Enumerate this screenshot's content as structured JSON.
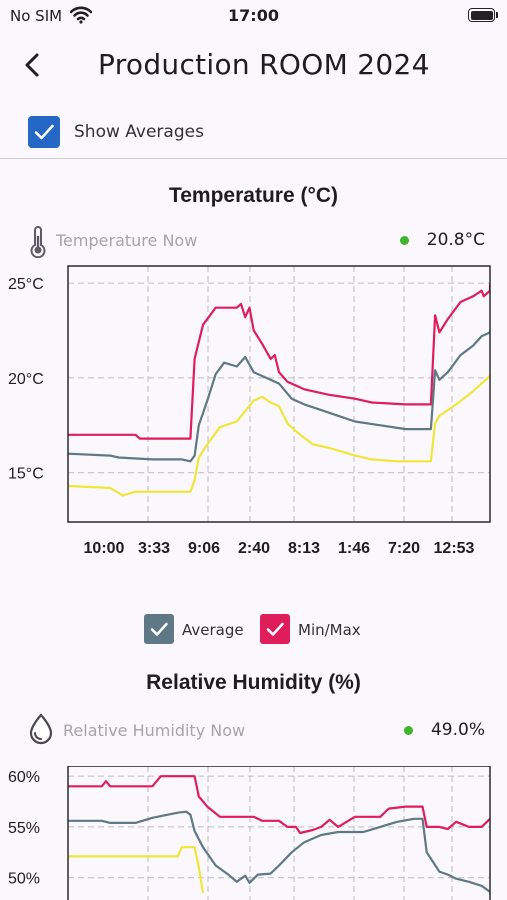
{
  "status_bar": {
    "carrier": "No SIM",
    "time": "17:00"
  },
  "header": {
    "title": "Production ROOM 2024",
    "back_icon": "chevron-left-icon"
  },
  "averages_toggle": {
    "label": "Show Averages",
    "checked": true,
    "color": "#2467c4"
  },
  "temperature": {
    "title": "Temperature (°C)",
    "now_label": "Temperature Now",
    "now_value": "20.8°C",
    "icon": "thermometer-icon",
    "status_color": "#3fb52c"
  },
  "humidity": {
    "title": "Relative Humidity (%)",
    "now_label": "Relative Humidity Now",
    "now_value": "49.0%",
    "icon": "droplet-icon",
    "status_color": "#3fb52c"
  },
  "legend": {
    "average_label": "Average",
    "average_color": "#5f7885",
    "minmax_label": "Min/Max",
    "minmax_color": "#de1d5a",
    "min_color": "#f2e53a"
  },
  "chart_data": [
    {
      "type": "line",
      "title": "Temperature (°C)",
      "ylim": [
        12.4,
        25.9
      ],
      "yticks": [
        15,
        20,
        25
      ],
      "ytick_labels": [
        "15°C",
        "20°C",
        "25°C"
      ],
      "xtick_labels": [
        "10:00",
        "3:33",
        "9:06",
        "2:40",
        "8:13",
        "1:46",
        "7:20",
        "12:53"
      ],
      "grid": true,
      "series": [
        {
          "name": "Max",
          "color": "#de1d5a",
          "points": [
            [
              0,
              17.0
            ],
            [
              0.16,
              17.0
            ],
            [
              0.17,
              16.8
            ],
            [
              0.29,
              16.8
            ],
            [
              0.3,
              21.0
            ],
            [
              0.32,
              22.8
            ],
            [
              0.35,
              23.7
            ],
            [
              0.4,
              23.7
            ],
            [
              0.41,
              23.9
            ],
            [
              0.42,
              23.2
            ],
            [
              0.43,
              23.7
            ],
            [
              0.44,
              22.5
            ],
            [
              0.46,
              21.8
            ],
            [
              0.48,
              21.0
            ],
            [
              0.49,
              21.2
            ],
            [
              0.5,
              20.3
            ],
            [
              0.52,
              19.8
            ],
            [
              0.56,
              19.4
            ],
            [
              0.62,
              19.1
            ],
            [
              0.68,
              18.9
            ],
            [
              0.72,
              18.7
            ],
            [
              0.8,
              18.6
            ],
            [
              0.86,
              18.6
            ],
            [
              0.87,
              23.3
            ],
            [
              0.88,
              22.4
            ],
            [
              0.9,
              23.1
            ],
            [
              0.93,
              24.0
            ],
            [
              0.96,
              24.3
            ],
            [
              0.98,
              24.6
            ],
            [
              0.985,
              24.3
            ],
            [
              0.99,
              24.4
            ],
            [
              1.0,
              24.6
            ],
            [
              1.0,
              24.9
            ],
            [
              1.01,
              24.6
            ],
            [
              1.015,
              24.9
            ],
            [
              1.02,
              24.0
            ],
            [
              1.03,
              23.0
            ],
            [
              1.04,
              22.1
            ]
          ]
        },
        {
          "name": "Average",
          "color": "#5f7885",
          "points": [
            [
              0,
              16.0
            ],
            [
              0.1,
              15.9
            ],
            [
              0.12,
              15.8
            ],
            [
              0.2,
              15.7
            ],
            [
              0.27,
              15.7
            ],
            [
              0.29,
              15.6
            ],
            [
              0.3,
              15.9
            ],
            [
              0.31,
              17.5
            ],
            [
              0.33,
              18.8
            ],
            [
              0.35,
              20.2
            ],
            [
              0.37,
              20.8
            ],
            [
              0.4,
              20.6
            ],
            [
              0.42,
              21.1
            ],
            [
              0.44,
              20.3
            ],
            [
              0.48,
              19.9
            ],
            [
              0.5,
              19.7
            ],
            [
              0.53,
              18.9
            ],
            [
              0.56,
              18.6
            ],
            [
              0.6,
              18.3
            ],
            [
              0.64,
              18.0
            ],
            [
              0.68,
              17.7
            ],
            [
              0.74,
              17.5
            ],
            [
              0.8,
              17.3
            ],
            [
              0.86,
              17.3
            ],
            [
              0.87,
              20.4
            ],
            [
              0.88,
              19.9
            ],
            [
              0.9,
              20.3
            ],
            [
              0.93,
              21.2
            ],
            [
              0.96,
              21.7
            ],
            [
              0.98,
              22.2
            ],
            [
              1.0,
              22.4
            ],
            [
              1.03,
              22.5
            ],
            [
              1.04,
              21.3
            ]
          ]
        },
        {
          "name": "Min",
          "color": "#f2e53a",
          "points": [
            [
              0,
              14.3
            ],
            [
              0.1,
              14.2
            ],
            [
              0.13,
              13.8
            ],
            [
              0.16,
              14.0
            ],
            [
              0.2,
              14.0
            ],
            [
              0.29,
              14.0
            ],
            [
              0.3,
              14.6
            ],
            [
              0.31,
              15.8
            ],
            [
              0.33,
              16.5
            ],
            [
              0.36,
              17.4
            ],
            [
              0.4,
              17.7
            ],
            [
              0.44,
              18.8
            ],
            [
              0.46,
              19.0
            ],
            [
              0.48,
              18.7
            ],
            [
              0.5,
              18.5
            ],
            [
              0.52,
              17.6
            ],
            [
              0.55,
              17.0
            ],
            [
              0.58,
              16.5
            ],
            [
              0.62,
              16.3
            ],
            [
              0.68,
              15.9
            ],
            [
              0.72,
              15.7
            ],
            [
              0.78,
              15.6
            ],
            [
              0.86,
              15.6
            ],
            [
              0.87,
              17.6
            ],
            [
              0.88,
              18.0
            ],
            [
              0.92,
              18.6
            ],
            [
              0.96,
              19.3
            ],
            [
              1.0,
              20.1
            ],
            [
              1.02,
              20.4
            ],
            [
              1.04,
              19.6
            ]
          ]
        }
      ]
    },
    {
      "type": "line",
      "title": "Relative Humidity (%)",
      "ylim": [
        48.0,
        61.0
      ],
      "yticks": [
        50,
        55,
        60
      ],
      "ytick_labels": [
        "50%",
        "55%",
        "60%"
      ],
      "grid": true,
      "series": [
        {
          "name": "Max",
          "color": "#de1d5a",
          "points": [
            [
              0,
              59.0
            ],
            [
              0.08,
              59.0
            ],
            [
              0.09,
              59.5
            ],
            [
              0.1,
              59.0
            ],
            [
              0.2,
              59.0
            ],
            [
              0.22,
              60.0
            ],
            [
              0.3,
              60.0
            ],
            [
              0.31,
              58.0
            ],
            [
              0.33,
              57.0
            ],
            [
              0.36,
              56.0
            ],
            [
              0.44,
              56.0
            ],
            [
              0.46,
              55.6
            ],
            [
              0.5,
              55.6
            ],
            [
              0.52,
              55.0
            ],
            [
              0.54,
              55.0
            ],
            [
              0.55,
              54.4
            ],
            [
              0.58,
              54.7
            ],
            [
              0.6,
              55.0
            ],
            [
              0.62,
              55.7
            ],
            [
              0.64,
              55.0
            ],
            [
              0.68,
              56.0
            ],
            [
              0.74,
              56.0
            ],
            [
              0.76,
              56.8
            ],
            [
              0.8,
              57.0
            ],
            [
              0.84,
              57.0
            ],
            [
              0.85,
              55.0
            ],
            [
              0.88,
              55.0
            ],
            [
              0.9,
              54.8
            ],
            [
              0.92,
              55.5
            ],
            [
              0.95,
              55.0
            ],
            [
              0.98,
              55.0
            ],
            [
              1.0,
              55.8
            ],
            [
              1.03,
              55.8
            ],
            [
              1.04,
              55.2
            ],
            [
              1.06,
              55.2
            ],
            [
              1.07,
              54.2
            ]
          ]
        },
        {
          "name": "Average",
          "color": "#5f7885",
          "points": [
            [
              0,
              55.6
            ],
            [
              0.08,
              55.6
            ],
            [
              0.1,
              55.4
            ],
            [
              0.16,
              55.4
            ],
            [
              0.2,
              55.9
            ],
            [
              0.26,
              56.4
            ],
            [
              0.28,
              56.5
            ],
            [
              0.29,
              56.2
            ],
            [
              0.3,
              54.6
            ],
            [
              0.32,
              53.0
            ],
            [
              0.35,
              51.2
            ],
            [
              0.38,
              50.3
            ],
            [
              0.4,
              49.6
            ],
            [
              0.42,
              50.2
            ],
            [
              0.43,
              49.5
            ],
            [
              0.45,
              50.3
            ],
            [
              0.48,
              50.4
            ],
            [
              0.5,
              51.2
            ],
            [
              0.53,
              52.5
            ],
            [
              0.56,
              53.5
            ],
            [
              0.6,
              54.2
            ],
            [
              0.64,
              54.5
            ],
            [
              0.7,
              54.5
            ],
            [
              0.74,
              55.0
            ],
            [
              0.78,
              55.5
            ],
            [
              0.82,
              55.8
            ],
            [
              0.84,
              55.8
            ],
            [
              0.85,
              52.5
            ],
            [
              0.88,
              50.6
            ],
            [
              0.9,
              50.3
            ],
            [
              0.92,
              49.9
            ],
            [
              0.95,
              49.6
            ],
            [
              0.98,
              49.2
            ],
            [
              1.0,
              48.6
            ]
          ]
        },
        {
          "name": "Min",
          "color": "#f2e53a",
          "points": [
            [
              0,
              52.1
            ],
            [
              0.1,
              52.1
            ],
            [
              0.2,
              52.1
            ],
            [
              0.26,
              52.1
            ],
            [
              0.27,
              53.0
            ],
            [
              0.3,
              53.0
            ],
            [
              0.31,
              51.0
            ],
            [
              0.32,
              48.5
            ]
          ]
        }
      ]
    }
  ]
}
